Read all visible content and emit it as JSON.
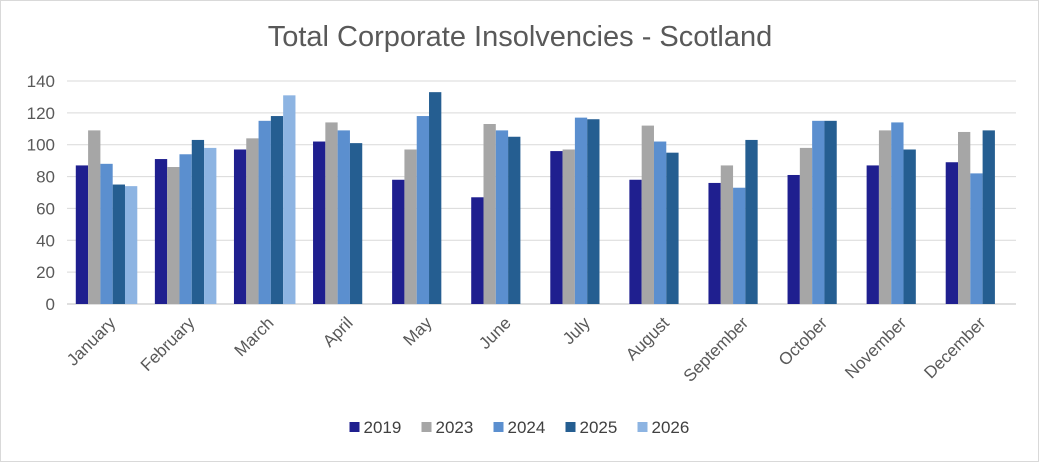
{
  "chart_data": {
    "type": "bar",
    "title": "Total Corporate Insolvencies - Scotland",
    "xlabel": "",
    "ylabel": "",
    "ylim": [
      0,
      140
    ],
    "yticks": [
      0,
      20,
      40,
      60,
      80,
      100,
      120,
      140
    ],
    "grid": true,
    "legend_position": "bottom",
    "categories": [
      "January",
      "February",
      "March",
      "April",
      "May",
      "June",
      "July",
      "August",
      "September",
      "October",
      "November",
      "December"
    ],
    "series": [
      {
        "name": "2019",
        "color": "#1f1f8f",
        "values": [
          87,
          91,
          97,
          102,
          78,
          67,
          96,
          78,
          76,
          81,
          87,
          89
        ]
      },
      {
        "name": "2023",
        "color": "#a6a6a6",
        "values": [
          109,
          86,
          104,
          114,
          97,
          113,
          97,
          112,
          87,
          98,
          109,
          108
        ]
      },
      {
        "name": "2024",
        "color": "#5b8fcf",
        "values": [
          88,
          94,
          115,
          109,
          118,
          109,
          117,
          102,
          73,
          115,
          114,
          82
        ]
      },
      {
        "name": "2025",
        "color": "#255e91",
        "values": [
          75,
          103,
          118,
          101,
          133,
          105,
          116,
          95,
          103,
          115,
          97,
          109
        ]
      },
      {
        "name": "2026",
        "color": "#8db4e2",
        "values": [
          74,
          98,
          131,
          null,
          null,
          null,
          null,
          null,
          null,
          null,
          null,
          null
        ]
      }
    ]
  }
}
